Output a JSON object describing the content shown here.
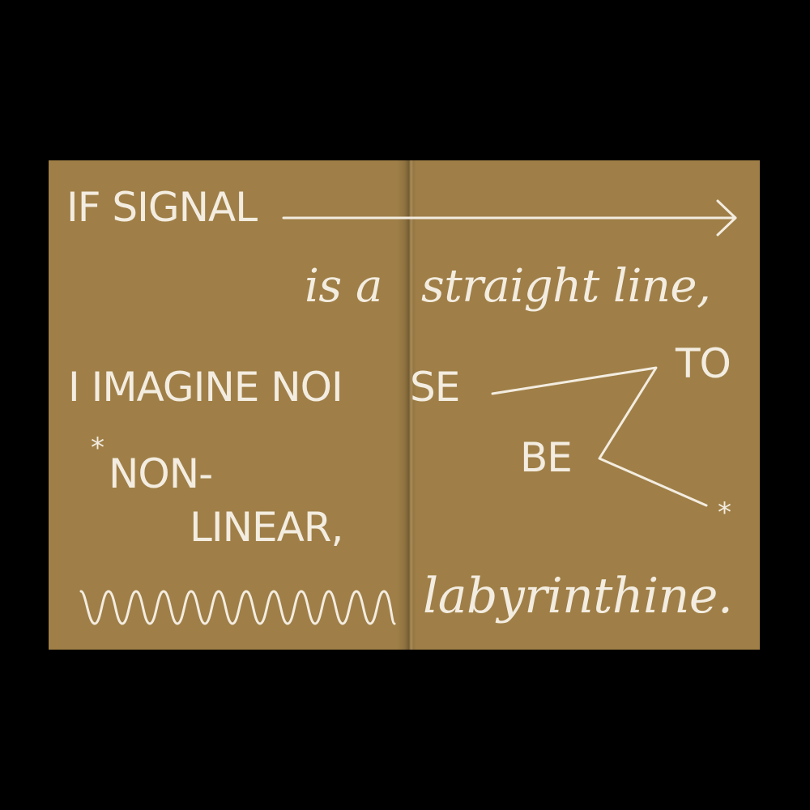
{
  "background_color": "#000000",
  "page_color": "#9f7f47",
  "ink_color": "#f3ece0",
  "lines": {
    "if_signal": "IF SIGNAL",
    "is_a": "is a",
    "straight_line": "straight line,",
    "i_imagine": "I IMAGINE NOI",
    "se": "SE",
    "to": "TO",
    "be": "BE",
    "asterisk_left": "*",
    "non": "NON-",
    "linear": "LINEAR,",
    "asterisk_right": "*",
    "labyrinthine": "labyrinthine."
  }
}
